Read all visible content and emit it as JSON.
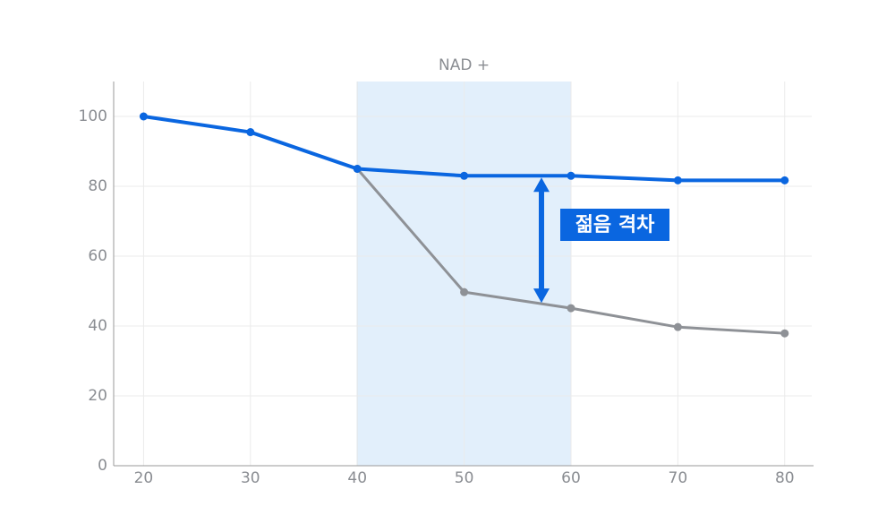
{
  "chart_data": {
    "type": "line",
    "x": [
      20,
      30,
      40,
      50,
      60,
      70,
      80
    ],
    "series": [
      {
        "color": "#0a66e0",
        "values": [
          100,
          95.5,
          85,
          83,
          83,
          81.7,
          81.7
        ]
      },
      {
        "color": "#8e9196",
        "values": [
          null,
          null,
          85,
          49.7,
          45.1,
          39.7,
          37.9
        ]
      }
    ],
    "xlim": [
      17.2,
      82.7
    ],
    "ylim": [
      0,
      110
    ],
    "xticks": [
      20,
      30,
      40,
      50,
      60,
      70,
      80
    ],
    "yticks": [
      0,
      20,
      40,
      60,
      80,
      100
    ],
    "grid": true,
    "band": {
      "label": "NAD +",
      "from": 40,
      "to": 60,
      "color": "#e2effb"
    },
    "annotation": {
      "text": "젊음 격차",
      "color": "#0a66e0"
    }
  }
}
